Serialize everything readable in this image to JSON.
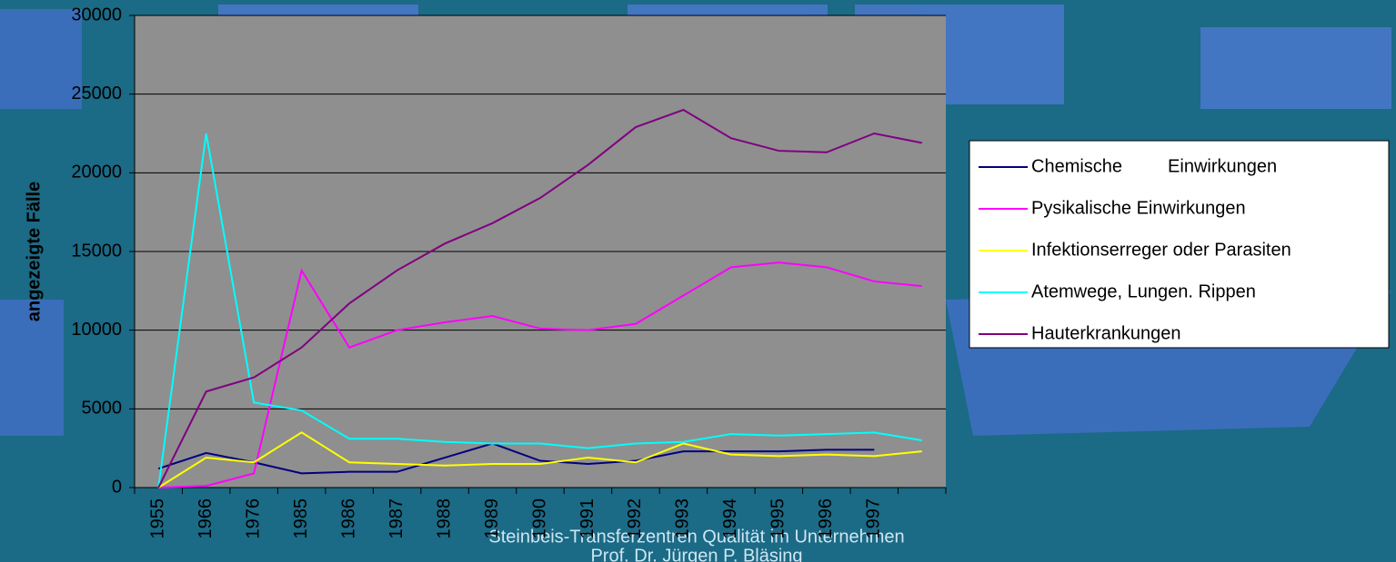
{
  "chart_data": {
    "type": "line",
    "y_label": "angezeigte Fälle",
    "footer": [
      "Steinbeis-Transferzentren Qualität im Unternehmen",
      "Prof. Dr. Jürgen P. Bläsing"
    ],
    "categories": [
      "1955",
      "1966",
      "1976",
      "1985",
      "1986",
      "1987",
      "1988",
      "1989",
      "1990",
      "1991",
      "1992",
      "1993",
      "1994",
      "1995",
      "1996",
      "1997",
      null
    ],
    "ylim": [
      0,
      30000
    ],
    "yticks": [
      0,
      5000,
      10000,
      15000,
      20000,
      25000,
      30000
    ],
    "grid": true,
    "series": [
      {
        "name": "Chemische         Einwirkungen",
        "color": "#000080",
        "values": [
          1200,
          2200,
          1600,
          900,
          1000,
          1000,
          1900,
          2800,
          1700,
          1500,
          1700,
          2300,
          2300,
          2300,
          2400,
          2400,
          null
        ]
      },
      {
        "name": "Pysikalische Einwirkungen",
        "color": "#ff00ff",
        "values": [
          0,
          100,
          900,
          13800,
          8900,
          10000,
          10500,
          10900,
          10100,
          10000,
          10400,
          12200,
          14000,
          14300,
          14000,
          13100,
          12800
        ]
      },
      {
        "name": "Infektionserreger oder Parasiten",
        "color": "#ffff00",
        "values": [
          0,
          1900,
          1600,
          3500,
          1600,
          1500,
          1400,
          1500,
          1500,
          1900,
          1600,
          2800,
          2100,
          2000,
          2100,
          2000,
          2300
        ]
      },
      {
        "name": "Atemwege, Lungen. Rippen",
        "color": "#00ffff",
        "values": [
          0,
          22500,
          5400,
          4900,
          3100,
          3100,
          2900,
          2800,
          2800,
          2500,
          2800,
          2900,
          3400,
          3300,
          3400,
          3500,
          3000
        ]
      },
      {
        "name": "Hauterkrankungen",
        "color": "#800080",
        "values": [
          0,
          6100,
          7000,
          8900,
          11700,
          13800,
          15500,
          16800,
          18400,
          20500,
          22900,
          24000,
          22200,
          21400,
          21300,
          22500,
          21900
        ]
      }
    ]
  }
}
